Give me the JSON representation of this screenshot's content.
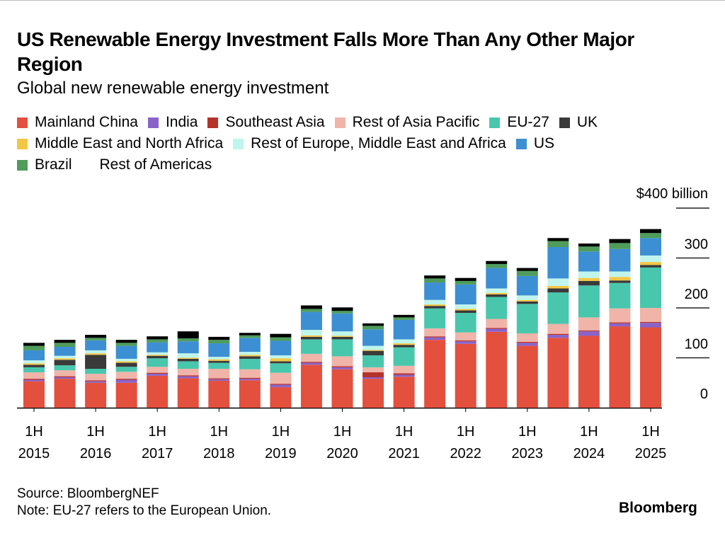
{
  "header": {
    "title": "US Renewable Energy Investment Falls More Than Any Other Major Region",
    "subtitle": "Global new renewable energy investment"
  },
  "footer": {
    "source": "Source: BloombergNEF",
    "note": "Note: EU-27 refers to the European Union.",
    "brand": "Bloomberg"
  },
  "chart_data": {
    "type": "bar",
    "stacked": true,
    "title": "US Renewable Energy Investment Falls More Than Any Other Major Region",
    "subtitle": "Global new renewable energy investment",
    "y_unit_label": "$400 billion",
    "ylim": [
      0,
      400
    ],
    "y_ticks": [
      {
        "value": 400,
        "label": "$400 billion"
      },
      {
        "value": 300,
        "label": "300"
      },
      {
        "value": 200,
        "label": "200"
      },
      {
        "value": 100,
        "label": "100"
      },
      {
        "value": 0,
        "label": "0"
      }
    ],
    "x_labels": [
      {
        "index": 0,
        "line1": "1H",
        "line2": "2015"
      },
      {
        "index": 2,
        "line1": "1H",
        "line2": "2016"
      },
      {
        "index": 4,
        "line1": "1H",
        "line2": "2017"
      },
      {
        "index": 6,
        "line1": "1H",
        "line2": "2018"
      },
      {
        "index": 8,
        "line1": "1H",
        "line2": "2019"
      },
      {
        "index": 10,
        "line1": "1H",
        "line2": "2020"
      },
      {
        "index": 12,
        "line1": "1H",
        "line2": "2021"
      },
      {
        "index": 14,
        "line1": "1H",
        "line2": "2022"
      },
      {
        "index": 16,
        "line1": "1H",
        "line2": "2023"
      },
      {
        "index": 18,
        "line1": "1H",
        "line2": "2024"
      },
      {
        "index": 20,
        "line1": "1H",
        "line2": "2025"
      }
    ],
    "categories": [
      "1H 2015",
      "2H 2015",
      "1H 2016",
      "2H 2016",
      "1H 2017",
      "2H 2017",
      "1H 2018",
      "2H 2018",
      "1H 2019",
      "2H 2019",
      "1H 2020",
      "2H 2020",
      "1H 2021",
      "2H 2021",
      "1H 2022",
      "2H 2022",
      "1H 2023",
      "2H 2023",
      "1H 2024",
      "2H 2024",
      "1H 2025"
    ],
    "legend_rows": [
      [
        "Mainland China",
        "India",
        "Southeast Asia",
        "Rest of Asia Pacific",
        "EU-27",
        "UK"
      ],
      [
        "Middle East and North Africa",
        "Rest of Europe, Middle East and Africa",
        "US"
      ],
      [
        "Brazil",
        "Rest of Americas"
      ]
    ],
    "legend_placement": "top",
    "grid": false,
    "series": [
      {
        "name": "Mainland China",
        "color": "#e3503e",
        "values": [
          53,
          58,
          50,
          50,
          64,
          59,
          54,
          55,
          41,
          86,
          77,
          58,
          62,
          136,
          128,
          152,
          124,
          140,
          144,
          163,
          161
        ]
      },
      {
        "name": "India",
        "color": "#8a63c9",
        "values": [
          3,
          3,
          3,
          6,
          4,
          4,
          3,
          3,
          5,
          4,
          4,
          3,
          4,
          5,
          5,
          6,
          6,
          6,
          9,
          6,
          9
        ]
      },
      {
        "name": "Southeast Asia",
        "color": "#b5322b",
        "values": [
          2,
          2,
          2,
          2,
          2,
          2,
          2,
          2,
          2,
          2,
          2,
          10,
          3,
          2,
          2,
          2,
          2,
          2,
          2,
          2,
          2
        ]
      },
      {
        "name": "Rest of Asia Pacific",
        "color": "#f0b4a8",
        "values": [
          13,
          12,
          13,
          14,
          12,
          13,
          19,
          17,
          22,
          16,
          20,
          10,
          15,
          16,
          16,
          18,
          17,
          20,
          26,
          28,
          28
        ]
      },
      {
        "name": "EU-27",
        "color": "#48c7ad",
        "values": [
          10,
          10,
          10,
          10,
          17,
          15,
          12,
          21,
          19,
          29,
          34,
          24,
          37,
          40,
          39,
          44,
          59,
          63,
          64,
          51,
          81
        ]
      },
      {
        "name": "UK",
        "color": "#3a3a3a",
        "values": [
          5,
          11,
          28,
          8,
          5,
          5,
          4,
          5,
          4,
          5,
          5,
          9,
          5,
          5,
          5,
          5,
          5,
          8,
          9,
          5,
          5
        ]
      },
      {
        "name": "Middle East and North Africa",
        "color": "#f2c744",
        "values": [
          3,
          3,
          3,
          3,
          2,
          2,
          3,
          3,
          6,
          3,
          2,
          2,
          3,
          3,
          3,
          3,
          3,
          5,
          6,
          7,
          6
        ]
      },
      {
        "name": "Rest of Europe, Middle East and Africa",
        "color": "#bff5ec",
        "values": [
          6,
          5,
          6,
          5,
          5,
          9,
          5,
          6,
          6,
          11,
          9,
          8,
          8,
          9,
          9,
          9,
          9,
          15,
          13,
          11,
          13
        ]
      },
      {
        "name": "US",
        "color": "#3d8fd3",
        "values": [
          20,
          18,
          20,
          26,
          20,
          24,
          27,
          28,
          29,
          36,
          36,
          33,
          39,
          35,
          40,
          41,
          39,
          63,
          40,
          45,
          35
        ]
      },
      {
        "name": "Brazil",
        "color": "#4f9c5b",
        "values": [
          9,
          8,
          5,
          6,
          6,
          6,
          7,
          5,
          7,
          6,
          5,
          7,
          5,
          8,
          7,
          8,
          10,
          12,
          10,
          12,
          10
        ]
      },
      {
        "name": "Rest of Americas",
        "color": "#000000",
        "values": [
          6,
          6,
          6,
          6,
          6,
          14,
          6,
          5,
          7,
          7,
          7,
          5,
          5,
          6,
          6,
          6,
          6,
          6,
          6,
          8,
          8
        ]
      }
    ]
  }
}
